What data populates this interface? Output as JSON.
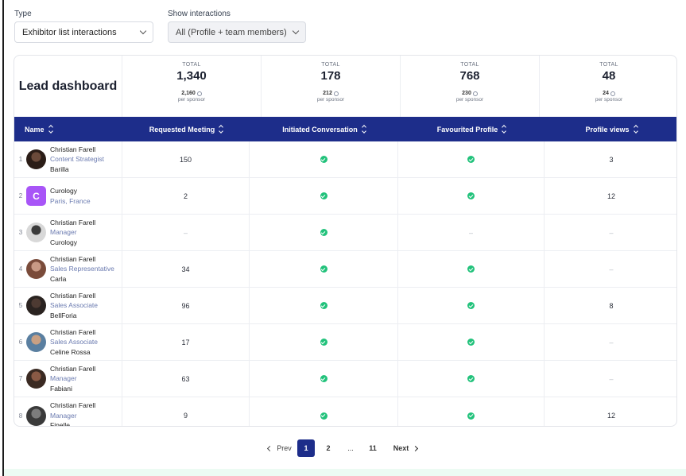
{
  "filters": {
    "type": {
      "label": "Type",
      "value": "Exhibitor list interactions"
    },
    "interactions": {
      "label": "Show interactions",
      "value": "All (Profile + team members)"
    }
  },
  "dashboard": {
    "title": "Lead dashboard",
    "stats": [
      {
        "label": "TOTAL",
        "value": "1,340",
        "sub": "2,160",
        "per": "per sponsor"
      },
      {
        "label": "TOTAL",
        "value": "178",
        "sub": "212",
        "per": "per sponsor"
      },
      {
        "label": "TOTAL",
        "value": "768",
        "sub": "230",
        "per": "per sponsor"
      },
      {
        "label": "TOTAL",
        "value": "48",
        "sub": "24",
        "per": "per sponsor"
      }
    ]
  },
  "table": {
    "headers": {
      "name": "Name",
      "requested": "Requested Meeting",
      "initiated": "Initiated Conversation",
      "favourited": "Favourited Profile",
      "views": "Profile views"
    },
    "rows": [
      {
        "index": "1",
        "name": "Christian Farell",
        "role": "Content Strategist",
        "company": "Barilla",
        "requested": "150",
        "initiated": "check",
        "favourited": "check",
        "views": "3"
      },
      {
        "index": "2",
        "name": "Curology",
        "role": "Paris, France",
        "company": "",
        "avatar_letter": "C",
        "requested": "2",
        "initiated": "check",
        "favourited": "check",
        "views": "12"
      },
      {
        "index": "3",
        "name": "Christian Farell",
        "role": "Manager",
        "company": "Curology",
        "requested": "–",
        "initiated": "check",
        "favourited": "–",
        "views": "–"
      },
      {
        "index": "4",
        "name": "Christian Farell",
        "role": "Sales Representative",
        "company": "Carla",
        "requested": "34",
        "initiated": "check",
        "favourited": "check",
        "views": "–"
      },
      {
        "index": "5",
        "name": "Christian Farell",
        "role": "Sales Associate",
        "company": "BellForia",
        "requested": "96",
        "initiated": "check",
        "favourited": "check",
        "views": "8"
      },
      {
        "index": "6",
        "name": "Christian Farell",
        "role": "Sales Associate",
        "company": "Celine Rossa",
        "requested": "17",
        "initiated": "check",
        "favourited": "check",
        "views": "–"
      },
      {
        "index": "7",
        "name": "Christian Farell",
        "role": "Manager",
        "company": "Fabiani",
        "requested": "63",
        "initiated": "check",
        "favourited": "check",
        "views": "–"
      },
      {
        "index": "8",
        "name": "Christian Farell",
        "role": "Manager",
        "company": "Finelle",
        "requested": "9",
        "initiated": "check",
        "favourited": "check",
        "views": "12"
      }
    ]
  },
  "pagination": {
    "prev": "Prev",
    "pages": [
      "1",
      "2",
      "...",
      "11"
    ],
    "current": "1",
    "next": "Next"
  },
  "colors": {
    "header_bg": "#1d2d8a",
    "check": "#22c27b",
    "role_text": "#6b7bb0",
    "avatar_letter_bg": "#a855f7"
  }
}
